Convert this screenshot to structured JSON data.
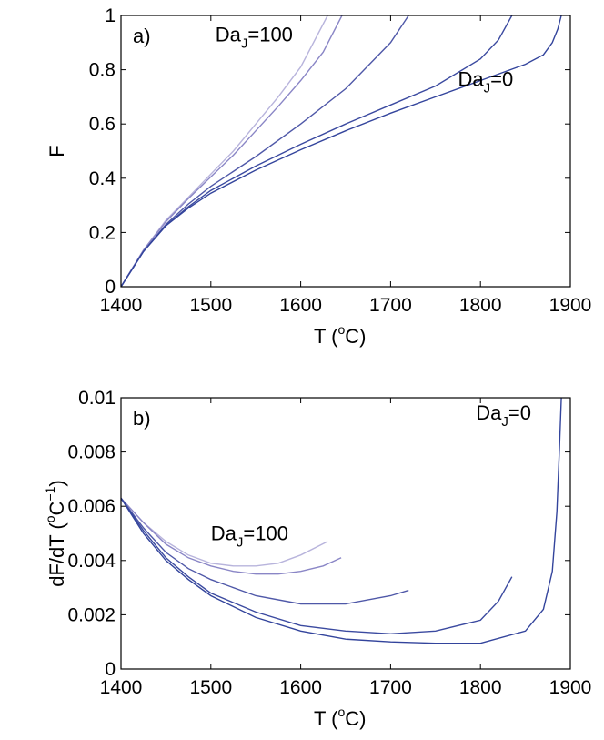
{
  "chart_data": [
    {
      "type": "line",
      "panel_label": "a)",
      "xlabel_main": "T (",
      "xlabel_sup": "o",
      "xlabel_end": "C)",
      "ylabel": "F",
      "xlim": [
        1400,
        1900
      ],
      "ylim": [
        0,
        1
      ],
      "xticks": [
        1400,
        1500,
        1600,
        1700,
        1800,
        1900
      ],
      "yticks": [
        0,
        0.2,
        0.4,
        0.6,
        0.8,
        1
      ],
      "ytick_labels": [
        "0",
        "0.2",
        "0.4",
        "0.6",
        "0.8",
        "1"
      ],
      "grid": false,
      "annotations": [
        {
          "base": "Da",
          "sub": "J",
          "value": "=100",
          "x": 1505,
          "y": 0.905
        },
        {
          "base": "Da",
          "sub": "J",
          "value": "=0",
          "x": 1775,
          "y": 0.74
        }
      ],
      "series": [
        {
          "color": "#b8b4dc",
          "x": [
            1400,
            1425,
            1450,
            1475,
            1500,
            1525,
            1550,
            1575,
            1600,
            1630
          ],
          "y": [
            0,
            0.135,
            0.245,
            0.33,
            0.415,
            0.5,
            0.6,
            0.7,
            0.81,
            1.0
          ]
        },
        {
          "color": "#8a86c6",
          "x": [
            1400,
            1425,
            1450,
            1475,
            1500,
            1525,
            1550,
            1575,
            1600,
            1625,
            1646
          ],
          "y": [
            0,
            0.135,
            0.24,
            0.325,
            0.405,
            0.485,
            0.575,
            0.665,
            0.76,
            0.865,
            1.0
          ]
        },
        {
          "color": "#4f58a8",
          "x": [
            1400,
            1425,
            1450,
            1475,
            1500,
            1550,
            1600,
            1650,
            1700,
            1720
          ],
          "y": [
            0,
            0.13,
            0.23,
            0.305,
            0.37,
            0.48,
            0.6,
            0.73,
            0.9,
            1.0
          ]
        },
        {
          "color": "#3b4aa0",
          "x": [
            1400,
            1425,
            1450,
            1475,
            1500,
            1550,
            1600,
            1650,
            1700,
            1750,
            1800,
            1820,
            1835
          ],
          "y": [
            0,
            0.13,
            0.225,
            0.295,
            0.355,
            0.445,
            0.525,
            0.6,
            0.67,
            0.74,
            0.84,
            0.91,
            1.0
          ]
        },
        {
          "color": "#33449c",
          "x": [
            1400,
            1425,
            1450,
            1475,
            1500,
            1550,
            1600,
            1650,
            1700,
            1750,
            1800,
            1850,
            1870,
            1880,
            1886,
            1890
          ],
          "y": [
            0,
            0.13,
            0.225,
            0.29,
            0.345,
            0.43,
            0.505,
            0.575,
            0.64,
            0.7,
            0.76,
            0.82,
            0.855,
            0.9,
            0.95,
            1.0
          ]
        }
      ]
    },
    {
      "type": "line",
      "panel_label": "b)",
      "xlabel_main": "T (",
      "xlabel_sup": "o",
      "xlabel_end": "C)",
      "ylabel_main": "dF/dT (",
      "ylabel_sup1": "o",
      "ylabel_mid": "C",
      "ylabel_sup2": "−1",
      "ylabel_end": ")",
      "xlim": [
        1400,
        1900
      ],
      "ylim": [
        0,
        0.01
      ],
      "xticks": [
        1400,
        1500,
        1600,
        1700,
        1800,
        1900
      ],
      "yticks": [
        0,
        0.002,
        0.004,
        0.006,
        0.008,
        0.01
      ],
      "ytick_labels": [
        "0",
        "0.002",
        "0.004",
        "0.006",
        "0.008",
        "0.01"
      ],
      "grid": false,
      "annotations": [
        {
          "base": "Da",
          "sub": "J",
          "value": "=100",
          "x": 1500,
          "y": 0.00475
        },
        {
          "base": "Da",
          "sub": "J",
          "value": "=0",
          "x": 1795,
          "y": 0.0092
        }
      ],
      "series": [
        {
          "color": "#b8b4dc",
          "x": [
            1400,
            1425,
            1450,
            1475,
            1500,
            1525,
            1550,
            1575,
            1600,
            1630
          ],
          "y": [
            0.0063,
            0.0054,
            0.0047,
            0.0042,
            0.0039,
            0.0038,
            0.0038,
            0.0039,
            0.0042,
            0.0047
          ]
        },
        {
          "color": "#8a86c6",
          "x": [
            1400,
            1425,
            1450,
            1475,
            1500,
            1525,
            1550,
            1575,
            1600,
            1625,
            1645
          ],
          "y": [
            0.0063,
            0.0054,
            0.0046,
            0.0041,
            0.0038,
            0.0036,
            0.0035,
            0.0035,
            0.0036,
            0.0038,
            0.0041
          ]
        },
        {
          "color": "#4f58a8",
          "x": [
            1400,
            1425,
            1450,
            1475,
            1500,
            1550,
            1600,
            1650,
            1700,
            1720
          ],
          "y": [
            0.0063,
            0.0052,
            0.0043,
            0.0037,
            0.0033,
            0.0027,
            0.0024,
            0.0024,
            0.0027,
            0.0029
          ]
        },
        {
          "color": "#3b4aa0",
          "x": [
            1400,
            1425,
            1450,
            1475,
            1500,
            1550,
            1600,
            1650,
            1700,
            1750,
            1800,
            1820,
            1835
          ],
          "y": [
            0.0063,
            0.0051,
            0.0041,
            0.0034,
            0.0028,
            0.0021,
            0.0016,
            0.0014,
            0.0013,
            0.0014,
            0.0018,
            0.0025,
            0.0034
          ]
        },
        {
          "color": "#33449c",
          "x": [
            1400,
            1425,
            1450,
            1475,
            1500,
            1550,
            1600,
            1650,
            1700,
            1750,
            1800,
            1850,
            1870,
            1880,
            1885,
            1888,
            1890
          ],
          "y": [
            0.0063,
            0.005,
            0.004,
            0.0033,
            0.0027,
            0.0019,
            0.0014,
            0.0011,
            0.001,
            0.00095,
            0.00095,
            0.0014,
            0.0022,
            0.0036,
            0.0058,
            0.0082,
            0.01
          ]
        }
      ]
    }
  ]
}
